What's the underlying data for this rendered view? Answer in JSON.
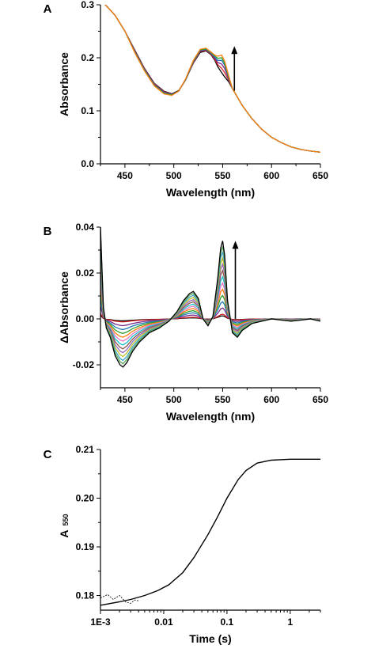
{
  "chart_data": [
    {
      "panel_label": "A",
      "type": "line",
      "xlabel": "Wavelength (nm)",
      "ylabel": "Absorbance",
      "xlim": [
        425,
        650
      ],
      "ylim": [
        0.0,
        0.3
      ],
      "xticks": [
        450,
        500,
        550,
        600,
        650
      ],
      "yticks": [
        0.0,
        0.1,
        0.2,
        0.3
      ],
      "ytick_labels": [
        "0.0",
        "0.1",
        "0.2",
        "0.3"
      ],
      "grid": false,
      "series_colors": [
        "#000000",
        "#d62728",
        "#7a2a8a",
        "#1f77b4",
        "#2ca02c",
        "#ff7f0e",
        "#e377c2",
        "#17becf",
        "#8c564b",
        "#9467bd",
        "#bcbd22",
        "#3ba3c9",
        "#5aa55a"
      ],
      "series": [
        {
          "x": [
            425,
            440,
            450,
            460,
            470,
            480,
            490,
            498,
            505,
            512,
            520,
            527,
            533,
            538,
            542,
            545,
            549,
            552,
            556,
            560,
            570,
            580,
            590,
            600,
            610,
            620,
            630,
            640,
            650
          ],
          "y": [
            0.31,
            0.28,
            0.25,
            0.215,
            0.18,
            0.152,
            0.137,
            0.132,
            0.138,
            0.158,
            0.19,
            0.21,
            0.213,
            0.206,
            0.195,
            0.183,
            0.172,
            0.164,
            0.155,
            0.142,
            0.11,
            0.085,
            0.065,
            0.05,
            0.04,
            0.032,
            0.027,
            0.024,
            0.022
          ]
        },
        {
          "x": [
            425,
            440,
            450,
            460,
            470,
            480,
            490,
            498,
            505,
            512,
            520,
            527,
            533,
            538,
            542,
            545,
            549,
            552,
            556,
            560,
            570,
            580,
            590,
            600,
            610,
            620,
            630,
            640,
            650
          ],
          "y": [
            0.31,
            0.28,
            0.25,
            0.214,
            0.179,
            0.151,
            0.136,
            0.131,
            0.137,
            0.158,
            0.191,
            0.212,
            0.214,
            0.207,
            0.197,
            0.187,
            0.18,
            0.172,
            0.158,
            0.142,
            0.11,
            0.085,
            0.065,
            0.05,
            0.04,
            0.032,
            0.027,
            0.024,
            0.022
          ]
        },
        {
          "x": [
            425,
            440,
            450,
            460,
            470,
            480,
            490,
            498,
            505,
            512,
            520,
            527,
            533,
            538,
            542,
            545,
            549,
            552,
            556,
            560,
            570,
            580,
            590,
            600,
            610,
            620,
            630,
            640,
            650
          ],
          "y": [
            0.31,
            0.28,
            0.25,
            0.213,
            0.178,
            0.15,
            0.135,
            0.131,
            0.137,
            0.158,
            0.192,
            0.213,
            0.215,
            0.208,
            0.199,
            0.191,
            0.188,
            0.18,
            0.161,
            0.142,
            0.11,
            0.085,
            0.065,
            0.05,
            0.04,
            0.032,
            0.027,
            0.024,
            0.022
          ]
        },
        {
          "x": [
            425,
            440,
            450,
            460,
            470,
            480,
            490,
            498,
            505,
            512,
            520,
            527,
            533,
            538,
            542,
            545,
            549,
            552,
            556,
            560,
            570,
            580,
            590,
            600,
            610,
            620,
            630,
            640,
            650
          ],
          "y": [
            0.31,
            0.28,
            0.25,
            0.212,
            0.177,
            0.149,
            0.134,
            0.13,
            0.137,
            0.159,
            0.193,
            0.214,
            0.216,
            0.209,
            0.201,
            0.195,
            0.195,
            0.186,
            0.163,
            0.142,
            0.11,
            0.085,
            0.065,
            0.05,
            0.04,
            0.032,
            0.027,
            0.024,
            0.022
          ]
        },
        {
          "x": [
            425,
            440,
            450,
            460,
            470,
            480,
            490,
            498,
            505,
            512,
            520,
            527,
            533,
            538,
            542,
            545,
            549,
            552,
            556,
            560,
            570,
            580,
            590,
            600,
            610,
            620,
            630,
            640,
            650
          ],
          "y": [
            0.31,
            0.28,
            0.25,
            0.211,
            0.176,
            0.148,
            0.133,
            0.13,
            0.137,
            0.159,
            0.194,
            0.215,
            0.217,
            0.21,
            0.203,
            0.199,
            0.2,
            0.19,
            0.165,
            0.142,
            0.11,
            0.085,
            0.065,
            0.05,
            0.04,
            0.032,
            0.027,
            0.024,
            0.022
          ]
        },
        {
          "x": [
            425,
            440,
            450,
            460,
            470,
            480,
            490,
            498,
            505,
            512,
            520,
            527,
            533,
            538,
            542,
            545,
            549,
            552,
            556,
            560,
            570,
            580,
            590,
            600,
            610,
            620,
            630,
            640,
            650
          ],
          "y": [
            0.31,
            0.28,
            0.25,
            0.21,
            0.175,
            0.147,
            0.132,
            0.129,
            0.137,
            0.16,
            0.195,
            0.216,
            0.218,
            0.211,
            0.205,
            0.203,
            0.205,
            0.194,
            0.167,
            0.142,
            0.11,
            0.085,
            0.065,
            0.05,
            0.04,
            0.032,
            0.027,
            0.024,
            0.022
          ]
        }
      ],
      "annotations": [
        {
          "type": "arrow",
          "direction": "up",
          "x": 562,
          "y_from": 0.138,
          "y_to": 0.222
        }
      ]
    },
    {
      "panel_label": "B",
      "type": "line",
      "xlabel": "Wavelength (nm)",
      "ylabel": "ΔAbsorbance",
      "xlim": [
        425,
        650
      ],
      "ylim": [
        -0.03,
        0.04
      ],
      "xticks": [
        450,
        500,
        550,
        600,
        650
      ],
      "yticks": [
        -0.02,
        0.0,
        0.02,
        0.04
      ],
      "ytick_labels": [
        "-0.02",
        "0.00",
        "0.02",
        "0.04"
      ],
      "grid": false,
      "series_colors": [
        "#000000",
        "#d62728",
        "#7a2a8a",
        "#1f77b4",
        "#2ca02c",
        "#ff7f0e",
        "#e377c2",
        "#17becf",
        "#8c564b",
        "#9467bd",
        "#bcbd22",
        "#3ba3c9",
        "#5aa55a"
      ],
      "x": [
        425,
        428,
        431,
        435,
        440,
        445,
        448,
        452,
        458,
        465,
        475,
        485,
        495,
        503,
        510,
        516,
        520,
        525,
        530,
        535,
        540,
        545,
        548,
        550,
        552,
        555,
        560,
        565,
        570,
        580,
        590,
        600,
        620,
        640,
        650
      ],
      "shape": [
        0.04,
        0.005,
        -0.004,
        -0.008,
        -0.016,
        -0.02,
        -0.021,
        -0.019,
        -0.014,
        -0.01,
        -0.006,
        -0.004,
        -0.001,
        0.003,
        0.008,
        0.011,
        0.012,
        0.009,
        0.0,
        -0.003,
        0.001,
        0.018,
        0.031,
        0.034,
        0.028,
        0.008,
        -0.006,
        -0.008,
        -0.005,
        -0.002,
        -0.001,
        0.0,
        -0.001,
        0.0,
        -0.001
      ],
      "series_scales": [
        0.04,
        0.06,
        0.14,
        0.22,
        0.3,
        0.38,
        0.46,
        0.54,
        0.62,
        0.7,
        0.78,
        0.86,
        0.93,
        1.0
      ],
      "annotations": [
        {
          "type": "arrow",
          "direction": "up",
          "x": 563,
          "y_from": 0.0,
          "y_to": 0.034
        }
      ]
    },
    {
      "panel_label": "C",
      "type": "line",
      "xlabel": "Time (s)",
      "ylabel": "A",
      "ylabel_subscript": "550",
      "xscale": "log",
      "xlim": [
        0.001,
        3
      ],
      "ylim": [
        0.177,
        0.21
      ],
      "xticks": [
        0.001,
        0.01,
        0.1,
        1
      ],
      "xtick_labels": [
        "1E-3",
        "0.01",
        "0.1",
        "1"
      ],
      "yticks": [
        0.18,
        0.19,
        0.2,
        0.21
      ],
      "ytick_labels": [
        "0.18",
        "0.19",
        "0.20",
        "0.21"
      ],
      "grid": false,
      "series": [
        {
          "style": "fit",
          "x": [
            0.001,
            0.002,
            0.003,
            0.005,
            0.008,
            0.012,
            0.02,
            0.03,
            0.05,
            0.07,
            0.1,
            0.15,
            0.2,
            0.3,
            0.5,
            0.7,
            1,
            1.5,
            2,
            3
          ],
          "y": [
            0.178,
            0.1787,
            0.1792,
            0.18,
            0.181,
            0.1822,
            0.1847,
            0.1878,
            0.1925,
            0.196,
            0.2,
            0.2038,
            0.2057,
            0.2072,
            0.2078,
            0.2079,
            0.208,
            0.208,
            0.208,
            0.208
          ]
        },
        {
          "style": "data",
          "x": [
            0.001,
            0.0013,
            0.0016,
            0.002,
            0.0025,
            0.003,
            0.0035,
            0.004
          ],
          "y": [
            0.1795,
            0.1802,
            0.1792,
            0.18,
            0.1787,
            0.1784,
            0.1791,
            0.1789
          ]
        }
      ]
    }
  ]
}
